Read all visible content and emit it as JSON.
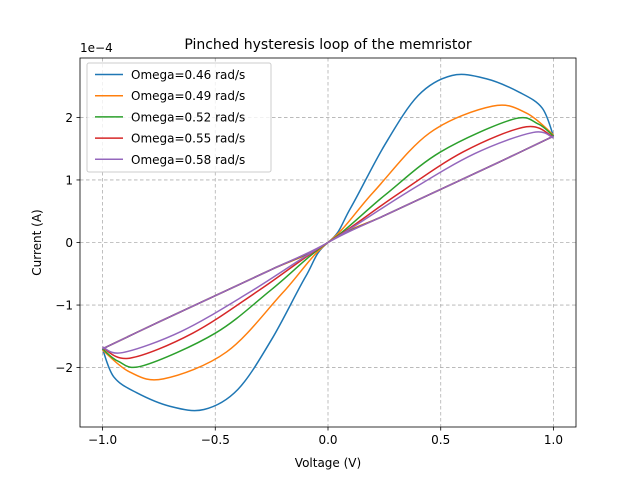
{
  "chart_data": {
    "type": "line",
    "title": "Pinched hysteresis loop of the memristor",
    "xlabel": "Voltage (V)",
    "ylabel": "Current (A)",
    "y_offset_label": "1e−4",
    "xlim": [
      -1.1,
      1.1
    ],
    "ylim": [
      -2.95,
      2.95
    ],
    "xticks": [
      -1.0,
      -0.5,
      0.0,
      0.5,
      1.0
    ],
    "xtick_labels": [
      "−1.0",
      "−0.5",
      "0.0",
      "0.5",
      "1.0"
    ],
    "yticks": [
      -2,
      -1,
      0,
      1,
      2
    ],
    "ytick_labels": [
      "−2",
      "−1",
      "0",
      "1",
      "2"
    ],
    "grid": true,
    "legend_position": "top-left",
    "series": [
      {
        "name": "Omega=0.46 rad/s",
        "color": "#1f77b4",
        "upper": [
          [
            -1.0,
            -1.7
          ],
          [
            -0.75,
            -1.27
          ],
          [
            -0.5,
            -0.85
          ],
          [
            -0.25,
            -0.43
          ],
          [
            0.0,
            0.0
          ],
          [
            0.1,
            0.55
          ],
          [
            0.25,
            1.55
          ],
          [
            0.4,
            2.35
          ],
          [
            0.55,
            2.67
          ],
          [
            0.7,
            2.62
          ],
          [
            0.85,
            2.4
          ],
          [
            0.95,
            2.15
          ],
          [
            1.0,
            1.7
          ]
        ]
      },
      {
        "name": "Omega=0.49 rad/s",
        "color": "#ff7f0e",
        "upper": [
          [
            -1.0,
            -1.7
          ],
          [
            -0.75,
            -1.27
          ],
          [
            -0.5,
            -0.85
          ],
          [
            -0.25,
            -0.43
          ],
          [
            0.0,
            0.0
          ],
          [
            0.2,
            0.8
          ],
          [
            0.45,
            1.75
          ],
          [
            0.73,
            2.18
          ],
          [
            0.88,
            2.07
          ],
          [
            1.0,
            1.72
          ]
        ]
      },
      {
        "name": "Omega=0.52 rad/s",
        "color": "#2ca02c",
        "upper": [
          [
            -1.0,
            -1.7
          ],
          [
            -0.75,
            -1.27
          ],
          [
            -0.5,
            -0.85
          ],
          [
            -0.25,
            -0.43
          ],
          [
            0.0,
            0.0
          ],
          [
            0.25,
            0.75
          ],
          [
            0.5,
            1.45
          ],
          [
            0.82,
            1.97
          ],
          [
            0.93,
            1.9
          ],
          [
            1.0,
            1.7
          ]
        ]
      },
      {
        "name": "Omega=0.55 rad/s",
        "color": "#d62728",
        "upper": [
          [
            -1.0,
            -1.7
          ],
          [
            -0.75,
            -1.27
          ],
          [
            -0.5,
            -0.85
          ],
          [
            -0.25,
            -0.43
          ],
          [
            0.0,
            0.0
          ],
          [
            0.3,
            0.75
          ],
          [
            0.6,
            1.45
          ],
          [
            0.88,
            1.85
          ],
          [
            1.0,
            1.68
          ]
        ]
      },
      {
        "name": "Omega=0.58 rad/s",
        "color": "#9467bd",
        "upper": [
          [
            -1.0,
            -1.7
          ],
          [
            -0.75,
            -1.27
          ],
          [
            -0.5,
            -0.85
          ],
          [
            -0.25,
            -0.43
          ],
          [
            0.0,
            0.0
          ],
          [
            0.35,
            0.8
          ],
          [
            0.65,
            1.42
          ],
          [
            0.91,
            1.76
          ],
          [
            1.0,
            1.67
          ]
        ]
      }
    ]
  }
}
